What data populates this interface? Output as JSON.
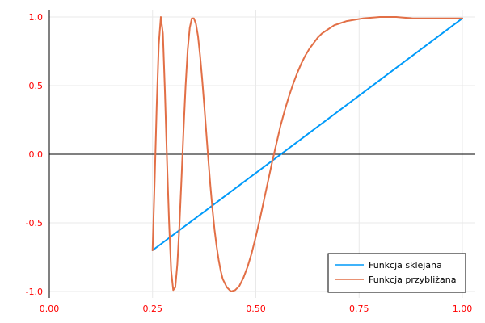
{
  "chart_data": {
    "type": "line",
    "title": "",
    "xlabel": "",
    "ylabel": "",
    "xlim": [
      0.0,
      1.0
    ],
    "ylim": [
      -1.0,
      1.0
    ],
    "grid": true,
    "legend_position": "bottom-right",
    "tick_color": "#ff0000",
    "x_ticks": [
      {
        "value": 0.0,
        "label": "0.00"
      },
      {
        "value": 0.25,
        "label": "0.25"
      },
      {
        "value": 0.5,
        "label": "0.50"
      },
      {
        "value": 0.75,
        "label": "0.75"
      },
      {
        "value": 1.0,
        "label": "1.00"
      }
    ],
    "y_ticks": [
      {
        "value": -1.0,
        "label": "-1.0"
      },
      {
        "value": -0.5,
        "label": "-0.5"
      },
      {
        "value": 0.0,
        "label": "0.0"
      },
      {
        "value": 0.5,
        "label": "0.5"
      },
      {
        "value": 1.0,
        "label": "1.0"
      }
    ],
    "zero_line_y": 0.0,
    "series": [
      {
        "name": "Funkcja sklejana",
        "color": "#009af9",
        "x": [
          0.25,
          1.0
        ],
        "y": [
          -0.7,
          0.99
        ]
      },
      {
        "name": "Funkcja przybliżana",
        "color": "#e26f46",
        "x": [
          0.25,
          0.255,
          0.26,
          0.265,
          0.27,
          0.275,
          0.28,
          0.285,
          0.29,
          0.295,
          0.3,
          0.305,
          0.31,
          0.315,
          0.32,
          0.325,
          0.33,
          0.335,
          0.34,
          0.345,
          0.35,
          0.355,
          0.36,
          0.365,
          0.37,
          0.375,
          0.38,
          0.385,
          0.39,
          0.395,
          0.4,
          0.405,
          0.41,
          0.415,
          0.42,
          0.43,
          0.44,
          0.45,
          0.46,
          0.47,
          0.48,
          0.49,
          0.5,
          0.51,
          0.52,
          0.53,
          0.54,
          0.55,
          0.56,
          0.57,
          0.58,
          0.59,
          0.6,
          0.61,
          0.62,
          0.63,
          0.64,
          0.65,
          0.66,
          0.67,
          0.68,
          0.69,
          0.7,
          0.72,
          0.74,
          0.76,
          0.78,
          0.8,
          0.82,
          0.84,
          0.86,
          0.88,
          0.9,
          0.92,
          0.94,
          0.96,
          0.98,
          1.0
        ],
        "y": [
          -0.7,
          -0.2,
          0.35,
          0.8,
          1.0,
          0.88,
          0.45,
          -0.05,
          -0.5,
          -0.85,
          -0.99,
          -0.97,
          -0.8,
          -0.52,
          -0.18,
          0.18,
          0.5,
          0.76,
          0.92,
          0.99,
          0.99,
          0.95,
          0.86,
          0.72,
          0.55,
          0.36,
          0.16,
          -0.04,
          -0.23,
          -0.4,
          -0.55,
          -0.67,
          -0.77,
          -0.85,
          -0.91,
          -0.97,
          -1.0,
          -0.99,
          -0.96,
          -0.9,
          -0.82,
          -0.72,
          -0.6,
          -0.47,
          -0.33,
          -0.19,
          -0.05,
          0.08,
          0.21,
          0.32,
          0.42,
          0.51,
          0.59,
          0.66,
          0.72,
          0.77,
          0.81,
          0.85,
          0.88,
          0.9,
          0.92,
          0.94,
          0.95,
          0.97,
          0.98,
          0.99,
          0.995,
          1.0,
          1.0,
          1.0,
          0.995,
          0.99,
          0.99,
          0.99,
          0.99,
          0.99,
          0.99,
          0.99
        ]
      }
    ]
  }
}
